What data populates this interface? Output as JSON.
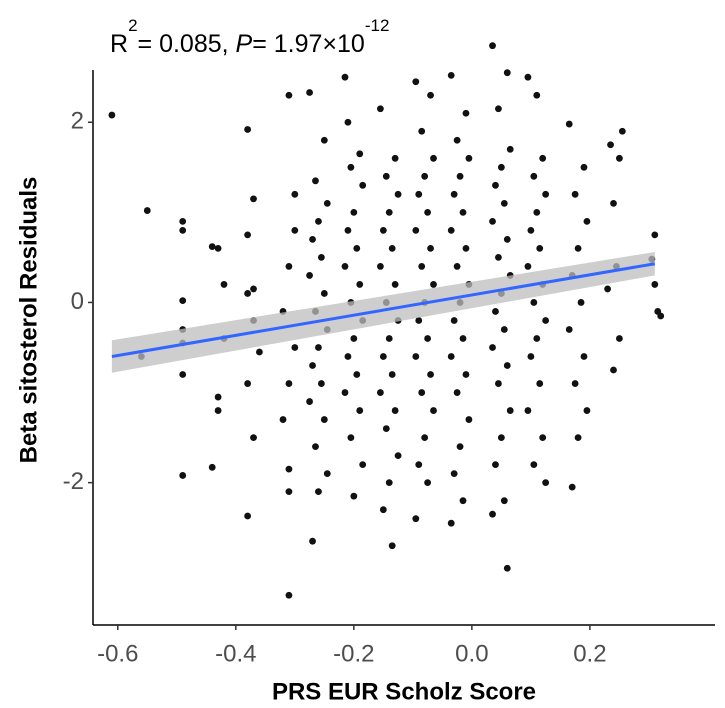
{
  "chart_data": {
    "type": "scatter",
    "annotation": {
      "r": "R",
      "r_exp": "2",
      "r_value": "= 0.085, ",
      "p": "P",
      "p_value": "= 1.97×10",
      "p_exp": "-12"
    },
    "xlabel": "PRS EUR Scholz Score",
    "ylabel": "Beta sitosterol Residuals",
    "color": "#111111",
    "xlim": [
      -0.642,
      0.412
    ],
    "ylim": [
      -3.58,
      2.58
    ],
    "xticks": [
      -0.6,
      -0.4,
      -0.2,
      {
        "value": 0,
        "label": "0.0"
      },
      0.2
    ],
    "yticks": [
      -2,
      0,
      2
    ],
    "grid": false,
    "fit": {
      "x": [
        -0.61,
        0.31
      ],
      "y": [
        -0.6,
        0.43
      ],
      "ci_lower": [
        -0.78,
        0.3
      ],
      "ci_upper": [
        -0.42,
        0.56
      ],
      "color": "#3366ff",
      "band_color": "#bdbdbd"
    },
    "x": [
      -0.61,
      -0.55,
      -0.56,
      -0.49,
      -0.49,
      -0.49,
      -0.49,
      -0.49,
      -0.49,
      -0.49,
      -0.43,
      -0.44,
      -0.42,
      -0.42,
      -0.43,
      -0.44,
      -0.43,
      -0.38,
      -0.37,
      -0.38,
      -0.37,
      -0.38,
      -0.37,
      -0.36,
      -0.38,
      -0.37,
      -0.38,
      -0.31,
      -0.3,
      -0.31,
      -0.32,
      -0.3,
      -0.31,
      -0.32,
      -0.31,
      -0.31,
      -0.31,
      -0.3,
      -0.275,
      -0.25,
      -0.265,
      -0.245,
      -0.26,
      -0.27,
      -0.255,
      -0.275,
      -0.25,
      -0.265,
      -0.245,
      -0.26,
      -0.27,
      -0.255,
      -0.275,
      -0.25,
      -0.265,
      -0.245,
      -0.26,
      -0.27,
      -0.215,
      -0.19,
      -0.205,
      -0.185,
      -0.2,
      -0.21,
      -0.195,
      -0.215,
      -0.19,
      -0.205,
      -0.185,
      -0.2,
      -0.21,
      -0.195,
      -0.215,
      -0.19,
      -0.205,
      -0.185,
      -0.2,
      -0.21,
      -0.155,
      -0.13,
      -0.145,
      -0.125,
      -0.14,
      -0.15,
      -0.135,
      -0.155,
      -0.13,
      -0.145,
      -0.125,
      -0.14,
      -0.15,
      -0.135,
      -0.155,
      -0.13,
      -0.145,
      -0.125,
      -0.14,
      -0.15,
      -0.135,
      -0.095,
      -0.07,
      -0.085,
      -0.065,
      -0.08,
      -0.09,
      -0.075,
      -0.095,
      -0.07,
      -0.085,
      -0.065,
      -0.08,
      -0.09,
      -0.075,
      -0.095,
      -0.07,
      -0.085,
      -0.065,
      -0.08,
      -0.09,
      -0.075,
      -0.095,
      -0.035,
      -0.01,
      -0.025,
      -0.005,
      -0.02,
      -0.03,
      -0.015,
      -0.035,
      -0.01,
      -0.025,
      -0.005,
      -0.02,
      -0.03,
      -0.015,
      -0.035,
      -0.01,
      -0.025,
      -0.005,
      -0.02,
      -0.03,
      -0.015,
      -0.035,
      0.035,
      0.06,
      0.045,
      0.065,
      0.05,
      0.04,
      0.055,
      0.035,
      0.06,
      0.045,
      0.065,
      0.05,
      0.04,
      0.055,
      0.035,
      0.06,
      0.045,
      0.065,
      0.05,
      0.04,
      0.055,
      0.035,
      0.06,
      0.095,
      0.12,
      0.105,
      0.125,
      0.11,
      0.1,
      0.115,
      0.095,
      0.12,
      0.105,
      0.125,
      0.11,
      0.1,
      0.115,
      0.095,
      0.12,
      0.105,
      0.125,
      0.11,
      0.165,
      0.19,
      0.175,
      0.195,
      0.18,
      0.17,
      0.185,
      0.165,
      0.19,
      0.175,
      0.195,
      0.18,
      0.17,
      0.235,
      0.25,
      0.255,
      0.24,
      0.245,
      0.23,
      0.25,
      0.24,
      0.31,
      0.305,
      0.315,
      0.32,
      0.31
    ],
    "values": [
      2.08,
      1.02,
      -0.6,
      0.9,
      0.8,
      0.02,
      -0.3,
      -0.45,
      -0.8,
      -1.92,
      0.6,
      0.62,
      0.2,
      -0.4,
      -1.05,
      -1.83,
      -1.2,
      1.92,
      1.15,
      0.75,
      0.15,
      0.1,
      -0.2,
      -0.55,
      -0.9,
      -1.5,
      -2.37,
      2.3,
      0.8,
      0.4,
      -0.1,
      -0.5,
      -0.9,
      -1.3,
      -1.85,
      -2.1,
      -3.25,
      1.2,
      2.33,
      1.8,
      1.35,
      1.1,
      0.9,
      0.7,
      0.5,
      0.3,
      0.1,
      -0.1,
      -0.3,
      -0.5,
      -0.7,
      -0.9,
      -1.1,
      -1.3,
      -1.6,
      -1.9,
      -2.1,
      -2.65,
      2.5,
      1.65,
      1.5,
      1.3,
      1.0,
      0.8,
      0.6,
      0.4,
      0.2,
      0.0,
      -0.2,
      -0.4,
      -0.6,
      -0.8,
      -1.0,
      -1.2,
      -1.5,
      -1.8,
      -2.15,
      2.0,
      2.15,
      1.6,
      1.4,
      1.2,
      1.0,
      0.8,
      0.6,
      0.4,
      0.2,
      0.0,
      -0.2,
      -0.4,
      -0.6,
      -0.8,
      -1.0,
      -1.2,
      -1.4,
      -1.7,
      -2.0,
      -2.3,
      -2.7,
      2.45,
      2.3,
      1.9,
      1.6,
      1.4,
      1.2,
      1.0,
      0.8,
      0.6,
      0.4,
      0.2,
      0.0,
      -0.2,
      -0.4,
      -0.6,
      -0.8,
      -1.0,
      -1.2,
      -1.5,
      -1.8,
      -2.0,
      -2.4,
      2.52,
      2.1,
      1.8,
      1.6,
      1.4,
      1.2,
      1.0,
      0.8,
      0.6,
      0.4,
      0.2,
      0.0,
      -0.2,
      -0.4,
      -0.6,
      -0.8,
      -1.0,
      -1.3,
      -1.6,
      -1.9,
      -2.2,
      -2.45,
      2.85,
      2.55,
      2.15,
      1.7,
      1.5,
      1.3,
      1.1,
      0.9,
      0.7,
      0.5,
      0.3,
      0.1,
      -0.1,
      -0.3,
      -0.5,
      -0.7,
      -0.9,
      -1.2,
      -1.5,
      -1.8,
      -2.2,
      -2.35,
      -2.95,
      2.5,
      1.6,
      1.4,
      1.2,
      1.0,
      0.8,
      0.6,
      0.4,
      0.2,
      0.0,
      -0.2,
      -0.4,
      -0.6,
      -0.9,
      -1.2,
      -1.5,
      -1.8,
      -2.0,
      2.3,
      1.98,
      1.5,
      1.2,
      0.9,
      0.6,
      0.3,
      0.0,
      -0.3,
      -0.6,
      -0.9,
      -1.2,
      -1.5,
      -2.05,
      1.75,
      1.6,
      1.9,
      1.1,
      0.4,
      0.15,
      -0.4,
      -0.75,
      0.75,
      0.48,
      -0.1,
      -0.15,
      0.2
    ]
  }
}
